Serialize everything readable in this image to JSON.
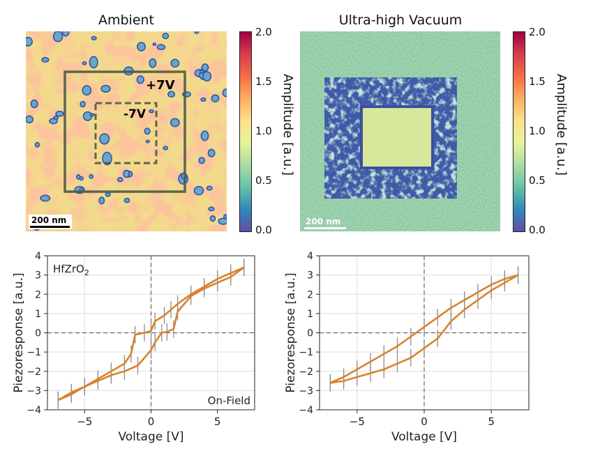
{
  "images": [
    {
      "title": "Ambient",
      "scalebar": "200 nm",
      "box_outer_label": "+7V",
      "box_inner_label": "-7V",
      "colorbar": {
        "label": "Amplitude [a.u.]",
        "min": 0.0,
        "max": 2.0,
        "ticks": [
          "0.0",
          "0.5",
          "1.0",
          "1.5",
          "2.0"
        ]
      }
    },
    {
      "title": "Ultra-high Vacuum",
      "scalebar": "200 nm",
      "colorbar": {
        "label": "Amplitude [a.u.]",
        "min": 0.0,
        "max": 2.0,
        "ticks": [
          "0.0",
          "0.5",
          "1.0",
          "1.5",
          "2.0"
        ]
      }
    }
  ],
  "colors": {
    "line": "#d9822b",
    "errorbar": "#8c8c8c",
    "grid": "#dddddd"
  },
  "chart_data": [
    {
      "type": "line",
      "xlabel": "Voltage [V]",
      "ylabel": "Piezoresponse [a.u.]",
      "xlim": [
        -7.8,
        7.8
      ],
      "ylim": [
        -4,
        4
      ],
      "xticks": [
        -5,
        0,
        5
      ],
      "yticks": [
        -4,
        -3,
        -2,
        -1,
        0,
        1,
        2,
        3,
        4
      ],
      "annotation_tl": "HfZrO",
      "annotation_tl_sub": "2",
      "annotation_br": "On-Field",
      "series": [
        {
          "x": [
            -7,
            -6,
            -5,
            -4,
            -3,
            -2,
            -1.5,
            -1.2,
            -0.5,
            0,
            0.3,
            1,
            1.5,
            2,
            3,
            4,
            5,
            6,
            7
          ],
          "y": [
            -3.5,
            -3.2,
            -2.8,
            -2.4,
            -2.0,
            -1.6,
            -1.1,
            -0.1,
            0.0,
            0.1,
            0.6,
            0.9,
            1.2,
            1.5,
            2.0,
            2.4,
            2.8,
            3.1,
            3.4
          ]
        },
        {
          "x": [
            7,
            6,
            5,
            4,
            3,
            2,
            1.7,
            1.2,
            0.8,
            0.3,
            0,
            -1,
            -2,
            -3,
            -4,
            -5,
            -6,
            -7
          ],
          "y": [
            3.4,
            2.9,
            2.6,
            2.3,
            1.9,
            1.1,
            0.2,
            0.05,
            0.0,
            -0.5,
            -0.9,
            -1.7,
            -2.0,
            -2.2,
            -2.5,
            -2.8,
            -3.1,
            -3.5
          ]
        }
      ]
    },
    {
      "type": "line",
      "xlabel": "Voltage [V]",
      "ylabel": "Piezoresponse [a.u.]",
      "xlim": [
        -7.8,
        7.8
      ],
      "ylim": [
        -4,
        4
      ],
      "xticks": [
        -5,
        0,
        5
      ],
      "yticks": [
        -4,
        -3,
        -2,
        -1,
        0,
        1,
        2,
        3,
        4
      ],
      "series": [
        {
          "x": [
            -7,
            -6,
            -5,
            -4,
            -3,
            -2,
            -1,
            0,
            1,
            2,
            3,
            4,
            5,
            6,
            7
          ],
          "y": [
            -2.6,
            -2.3,
            -1.9,
            -1.5,
            -1.1,
            -0.7,
            -0.2,
            0.3,
            0.8,
            1.3,
            1.7,
            2.1,
            2.5,
            2.8,
            3.0
          ]
        },
        {
          "x": [
            7,
            6,
            5,
            4,
            3,
            2,
            1,
            0,
            -1,
            -2,
            -3,
            -4,
            -5,
            -6,
            -7
          ],
          "y": [
            3.0,
            2.6,
            2.2,
            1.7,
            1.2,
            0.6,
            -0.3,
            -0.8,
            -1.3,
            -1.6,
            -1.9,
            -2.1,
            -2.3,
            -2.5,
            -2.6
          ]
        }
      ]
    }
  ]
}
